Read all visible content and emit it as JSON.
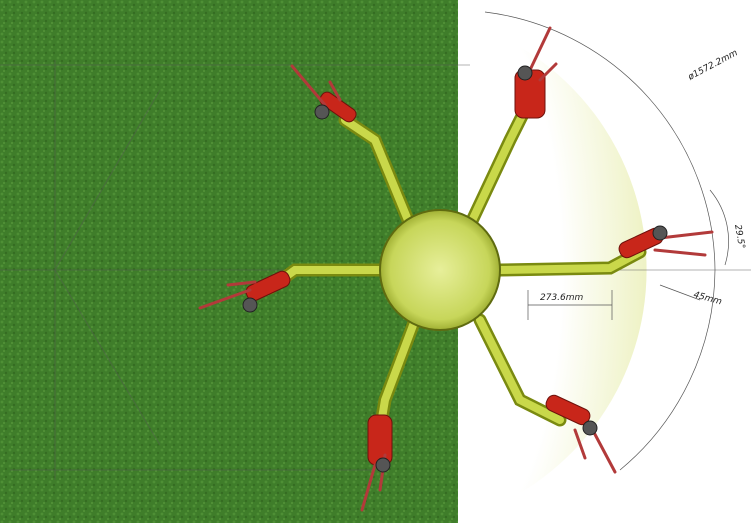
{
  "annotations": {
    "diameter": "ø1572.2mm",
    "angle": "29.5°",
    "arm_length": "273.6mm",
    "offset": "45mm"
  }
}
